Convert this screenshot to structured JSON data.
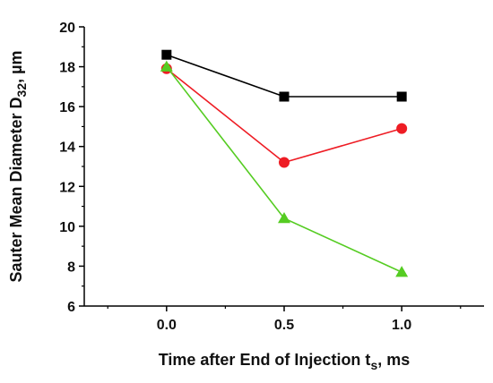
{
  "chart_data": {
    "type": "line",
    "title": "",
    "xlabel": {
      "main": "Time after End of Injection t",
      "sub": "s",
      "suffix": ", ms"
    },
    "ylabel": {
      "main": "Sauter Mean Diameter D",
      "sub": "32",
      "suffix": ", µm"
    },
    "x": [
      0.0,
      0.5,
      1.0
    ],
    "xticks": [
      "0.0",
      "0.5",
      "1.0"
    ],
    "xlim": [
      -0.35,
      1.35
    ],
    "yticks": [
      "6",
      "8",
      "10",
      "12",
      "14",
      "16",
      "18",
      "20"
    ],
    "ylim": [
      6,
      20
    ],
    "grid": false,
    "legend": "none",
    "series": [
      {
        "marker": "square",
        "color": "#000000",
        "values": [
          18.6,
          16.5,
          16.5
        ]
      },
      {
        "marker": "circle",
        "color": "#ee1c24",
        "values": [
          17.9,
          13.2,
          14.9
        ]
      },
      {
        "marker": "triangle",
        "color": "#55cc22",
        "values": [
          18.0,
          10.4,
          7.7
        ]
      }
    ]
  }
}
